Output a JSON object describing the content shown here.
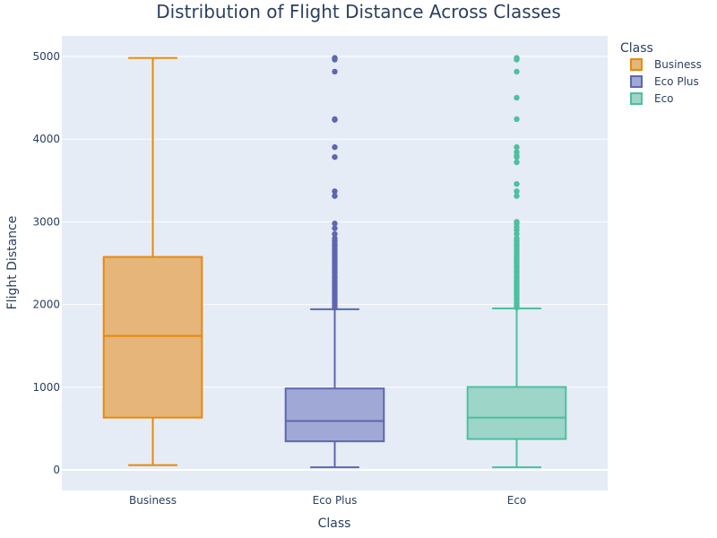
{
  "chart_data": {
    "type": "box",
    "title": "Distribution of Flight Distance Across Classes",
    "xlabel": "Class",
    "ylabel": "Flight Distance",
    "categories": [
      "Business",
      "Eco Plus",
      "Eco"
    ],
    "ylim": [
      -250,
      5250
    ],
    "yticks": [
      0,
      1000,
      2000,
      3000,
      4000,
      5000
    ],
    "grid": true,
    "legend": {
      "title": "Class",
      "position": "top-right"
    },
    "series": [
      {
        "name": "Business",
        "color": "#e8890c",
        "fill": "#e6b57a",
        "min": 56,
        "q1": 632,
        "median": 1620,
        "q3": 2575,
        "max": 4983,
        "outliers": []
      },
      {
        "name": "Eco Plus",
        "color": "#5c67b0",
        "fill": "#a0a8d6",
        "min": 31,
        "q1": 345,
        "median": 591,
        "q3": 984,
        "max": 1942,
        "outliers": [
          4983,
          4963,
          4817,
          4243,
          4234,
          3904,
          3784,
          3370,
          3312,
          2980,
          2922,
          2853,
          2800,
          2770,
          2740,
          2710,
          2680,
          2650,
          2620,
          2590,
          2560,
          2530,
          2500,
          2470,
          2440,
          2410,
          2380,
          2350,
          2320,
          2290,
          2260,
          2230,
          2200,
          2170,
          2140,
          2110,
          2080,
          2050,
          2020,
          1990,
          1960
        ]
      },
      {
        "name": "Eco",
        "color": "#4dbf9f",
        "fill": "#9dd5c8",
        "min": 31,
        "q1": 373,
        "median": 631,
        "q3": 1002,
        "max": 1952,
        "outliers": [
          4983,
          4963,
          4817,
          4502,
          4243,
          3904,
          3844,
          3800,
          3784,
          3720,
          3458,
          3370,
          3312,
          3000,
          2980,
          2940,
          2900,
          2853,
          2800,
          2770,
          2740,
          2710,
          2680,
          2650,
          2620,
          2590,
          2560,
          2530,
          2500,
          2470,
          2440,
          2410,
          2380,
          2350,
          2320,
          2290,
          2260,
          2230,
          2200,
          2170,
          2140,
          2110,
          2080,
          2050,
          2020,
          1990,
          1965
        ]
      }
    ]
  }
}
